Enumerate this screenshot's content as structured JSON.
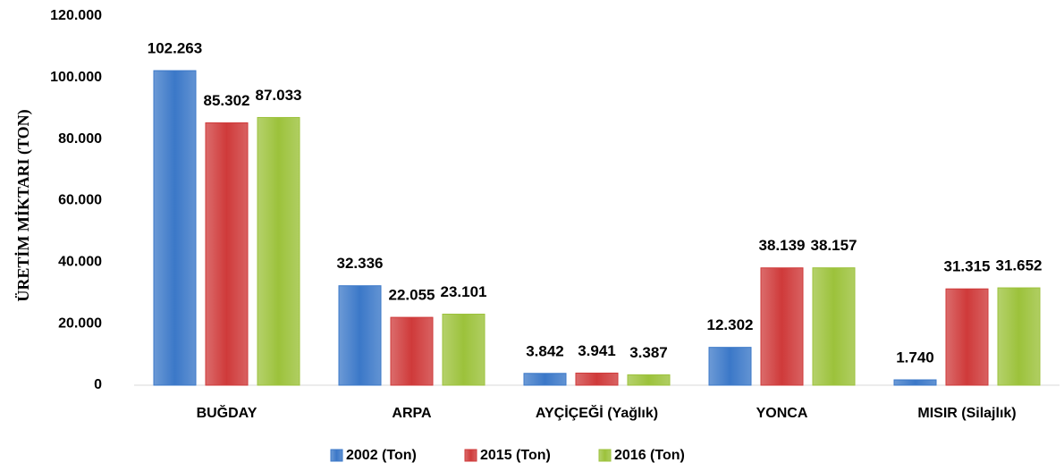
{
  "chart_data": {
    "type": "bar",
    "y_axis_label": "ÜRETİM MİKTARI (TON)",
    "categories": [
      "BUĞDAY",
      "ARPA",
      "AYÇİÇEĞİ (Yağlık)",
      "YONCA",
      "MISIR (Silajlık)"
    ],
    "series": [
      {
        "name": "2002 (Ton)",
        "color": "#3b78c8",
        "values": [
          102263,
          32336,
          3842,
          12302,
          1740
        ],
        "value_labels": [
          "102.263",
          "32.336",
          "3.842",
          "12.302",
          "1.740"
        ]
      },
      {
        "name": "2015 (Ton)",
        "color": "#cf3a3a",
        "values": [
          85302,
          22055,
          3941,
          38139,
          31315
        ],
        "value_labels": [
          "85.302",
          "22.055",
          "3.941",
          "38.139",
          "31.315"
        ]
      },
      {
        "name": "2016 (Ton)",
        "color": "#9cc23b",
        "values": [
          87033,
          23101,
          3387,
          38157,
          31652
        ],
        "value_labels": [
          "87.033",
          "23.101",
          "3.387",
          "38.157",
          "31.652"
        ]
      }
    ],
    "ylim": [
      0,
      120000
    ],
    "yticks": [
      0,
      {
        "value": 20000,
        "label": "20.000"
      },
      {
        "value": 40000,
        "label": "40.000"
      },
      {
        "value": 60000,
        "label": "60.000"
      },
      {
        "value": 80000,
        "label": "80.000"
      },
      {
        "value": 100000,
        "label": "100.000"
      },
      {
        "value": 120000,
        "label": "120.000"
      }
    ],
    "grid": false,
    "legend": "bottom"
  }
}
